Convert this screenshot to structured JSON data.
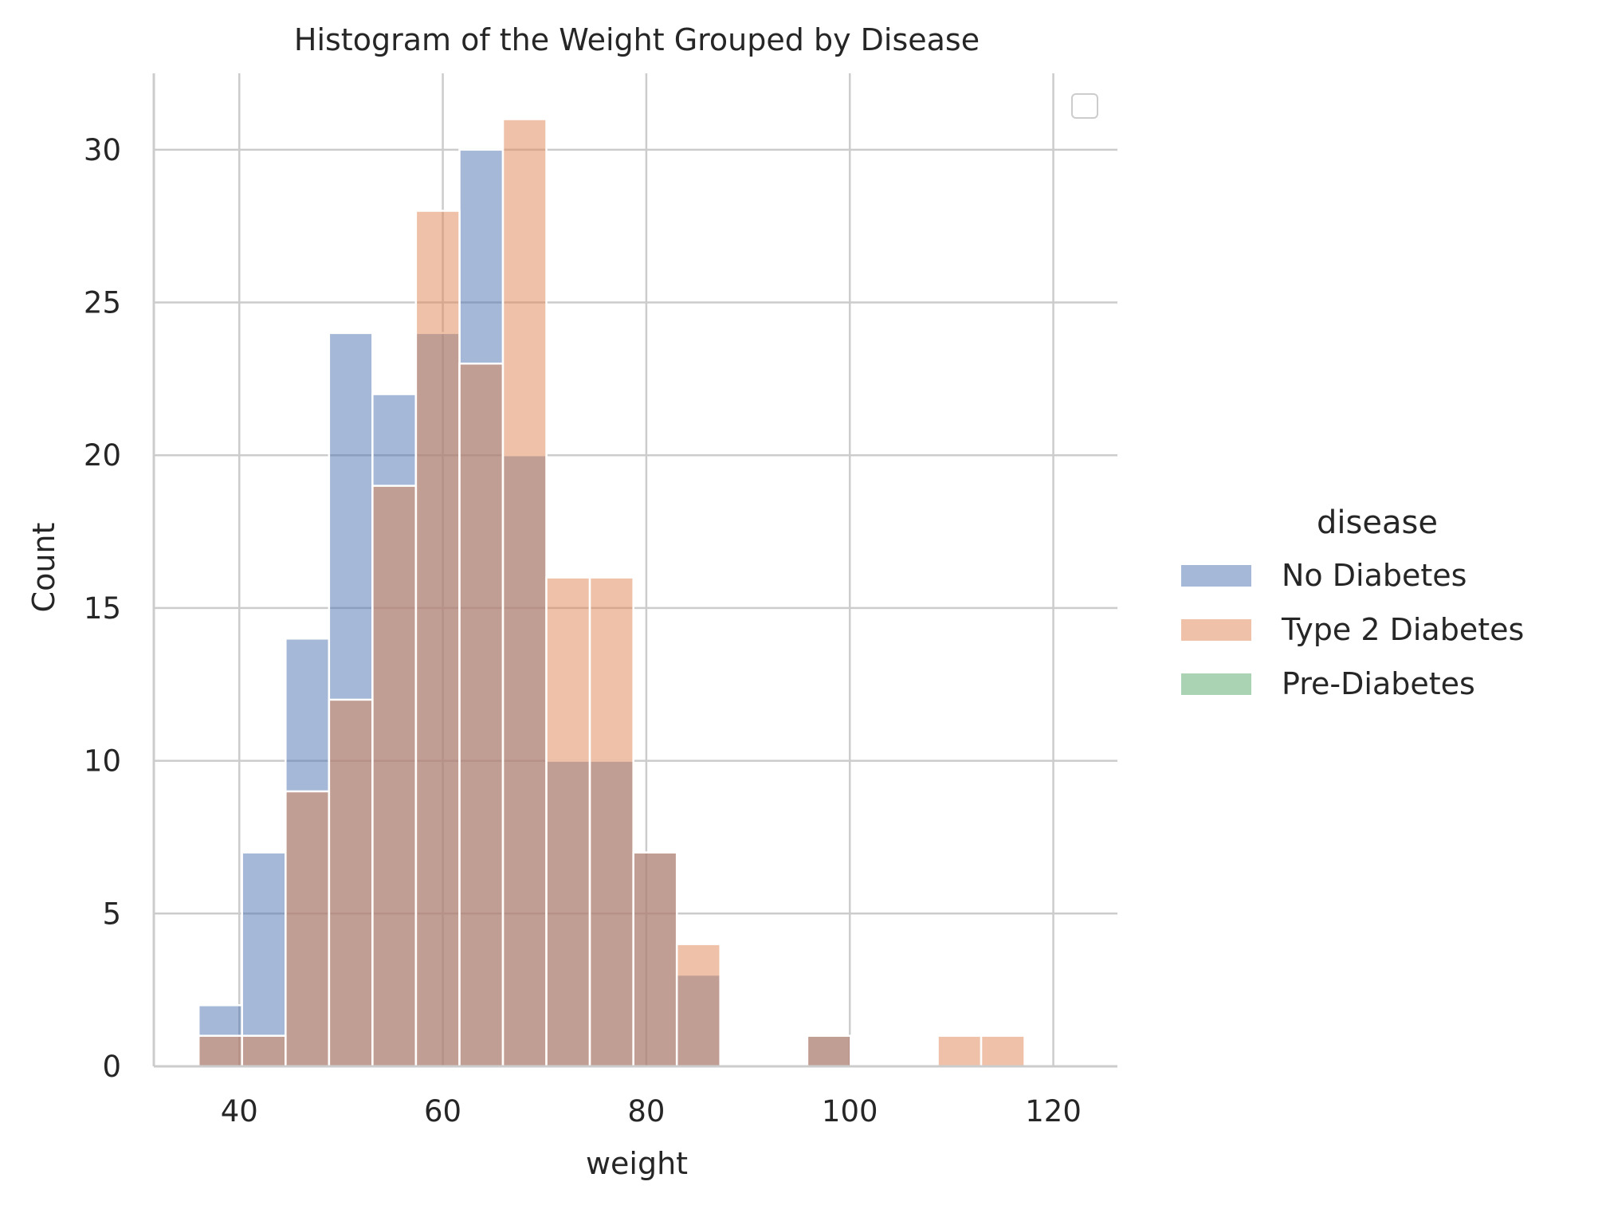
{
  "chart_data": {
    "type": "bar",
    "subtype": "overlapping histogram",
    "title": "Histogram of the Weight Grouped by Disease",
    "xlabel": "weight",
    "ylabel": "Count",
    "xlim": [
      31.6,
      126.3
    ],
    "ylim": [
      0,
      32.5
    ],
    "xticks": [
      "40",
      "60",
      "80",
      "100",
      "120"
    ],
    "xtick_values": [
      40,
      60,
      80,
      100,
      120
    ],
    "yticks": [
      "0",
      "5",
      "10",
      "15",
      "20",
      "25",
      "30"
    ],
    "ytick_values": [
      0,
      5,
      10,
      15,
      20,
      25,
      30
    ],
    "grid": true,
    "bin_edges": [
      36.0,
      40.27,
      44.55,
      48.82,
      53.09,
      57.36,
      61.64,
      65.91,
      70.18,
      74.45,
      78.73,
      83.0,
      87.27,
      91.55,
      95.82,
      100.09,
      104.36,
      108.64,
      112.91,
      117.18,
      121.45
    ],
    "series": [
      {
        "name": "No Diabetes",
        "color": "#4c72b0",
        "values": [
          2,
          7,
          14,
          24,
          22,
          24,
          30,
          20,
          10,
          10,
          7,
          3,
          0,
          0,
          1,
          0,
          0,
          0,
          0,
          0
        ]
      },
      {
        "name": "Type 2 Diabetes",
        "color": "#dd8452",
        "values": [
          1,
          1,
          9,
          12,
          19,
          28,
          23,
          31,
          16,
          16,
          7,
          4,
          0,
          0,
          1,
          0,
          0,
          1,
          1,
          0
        ]
      },
      {
        "name": "Pre-Diabetes",
        "color": "#55a868",
        "values": [
          0,
          0,
          0,
          0,
          0,
          0,
          0,
          0,
          0,
          0,
          0,
          0,
          0,
          0,
          0,
          0,
          0,
          0,
          0,
          0
        ]
      }
    ],
    "legend": {
      "title": "disease",
      "placement": "right",
      "entries": [
        "No Diabetes",
        "Type 2 Diabetes",
        "Pre-Diabetes"
      ]
    },
    "overlap_color": "#9993a8",
    "grid_color": "#cccccc",
    "axis_color": "#cccccc"
  }
}
